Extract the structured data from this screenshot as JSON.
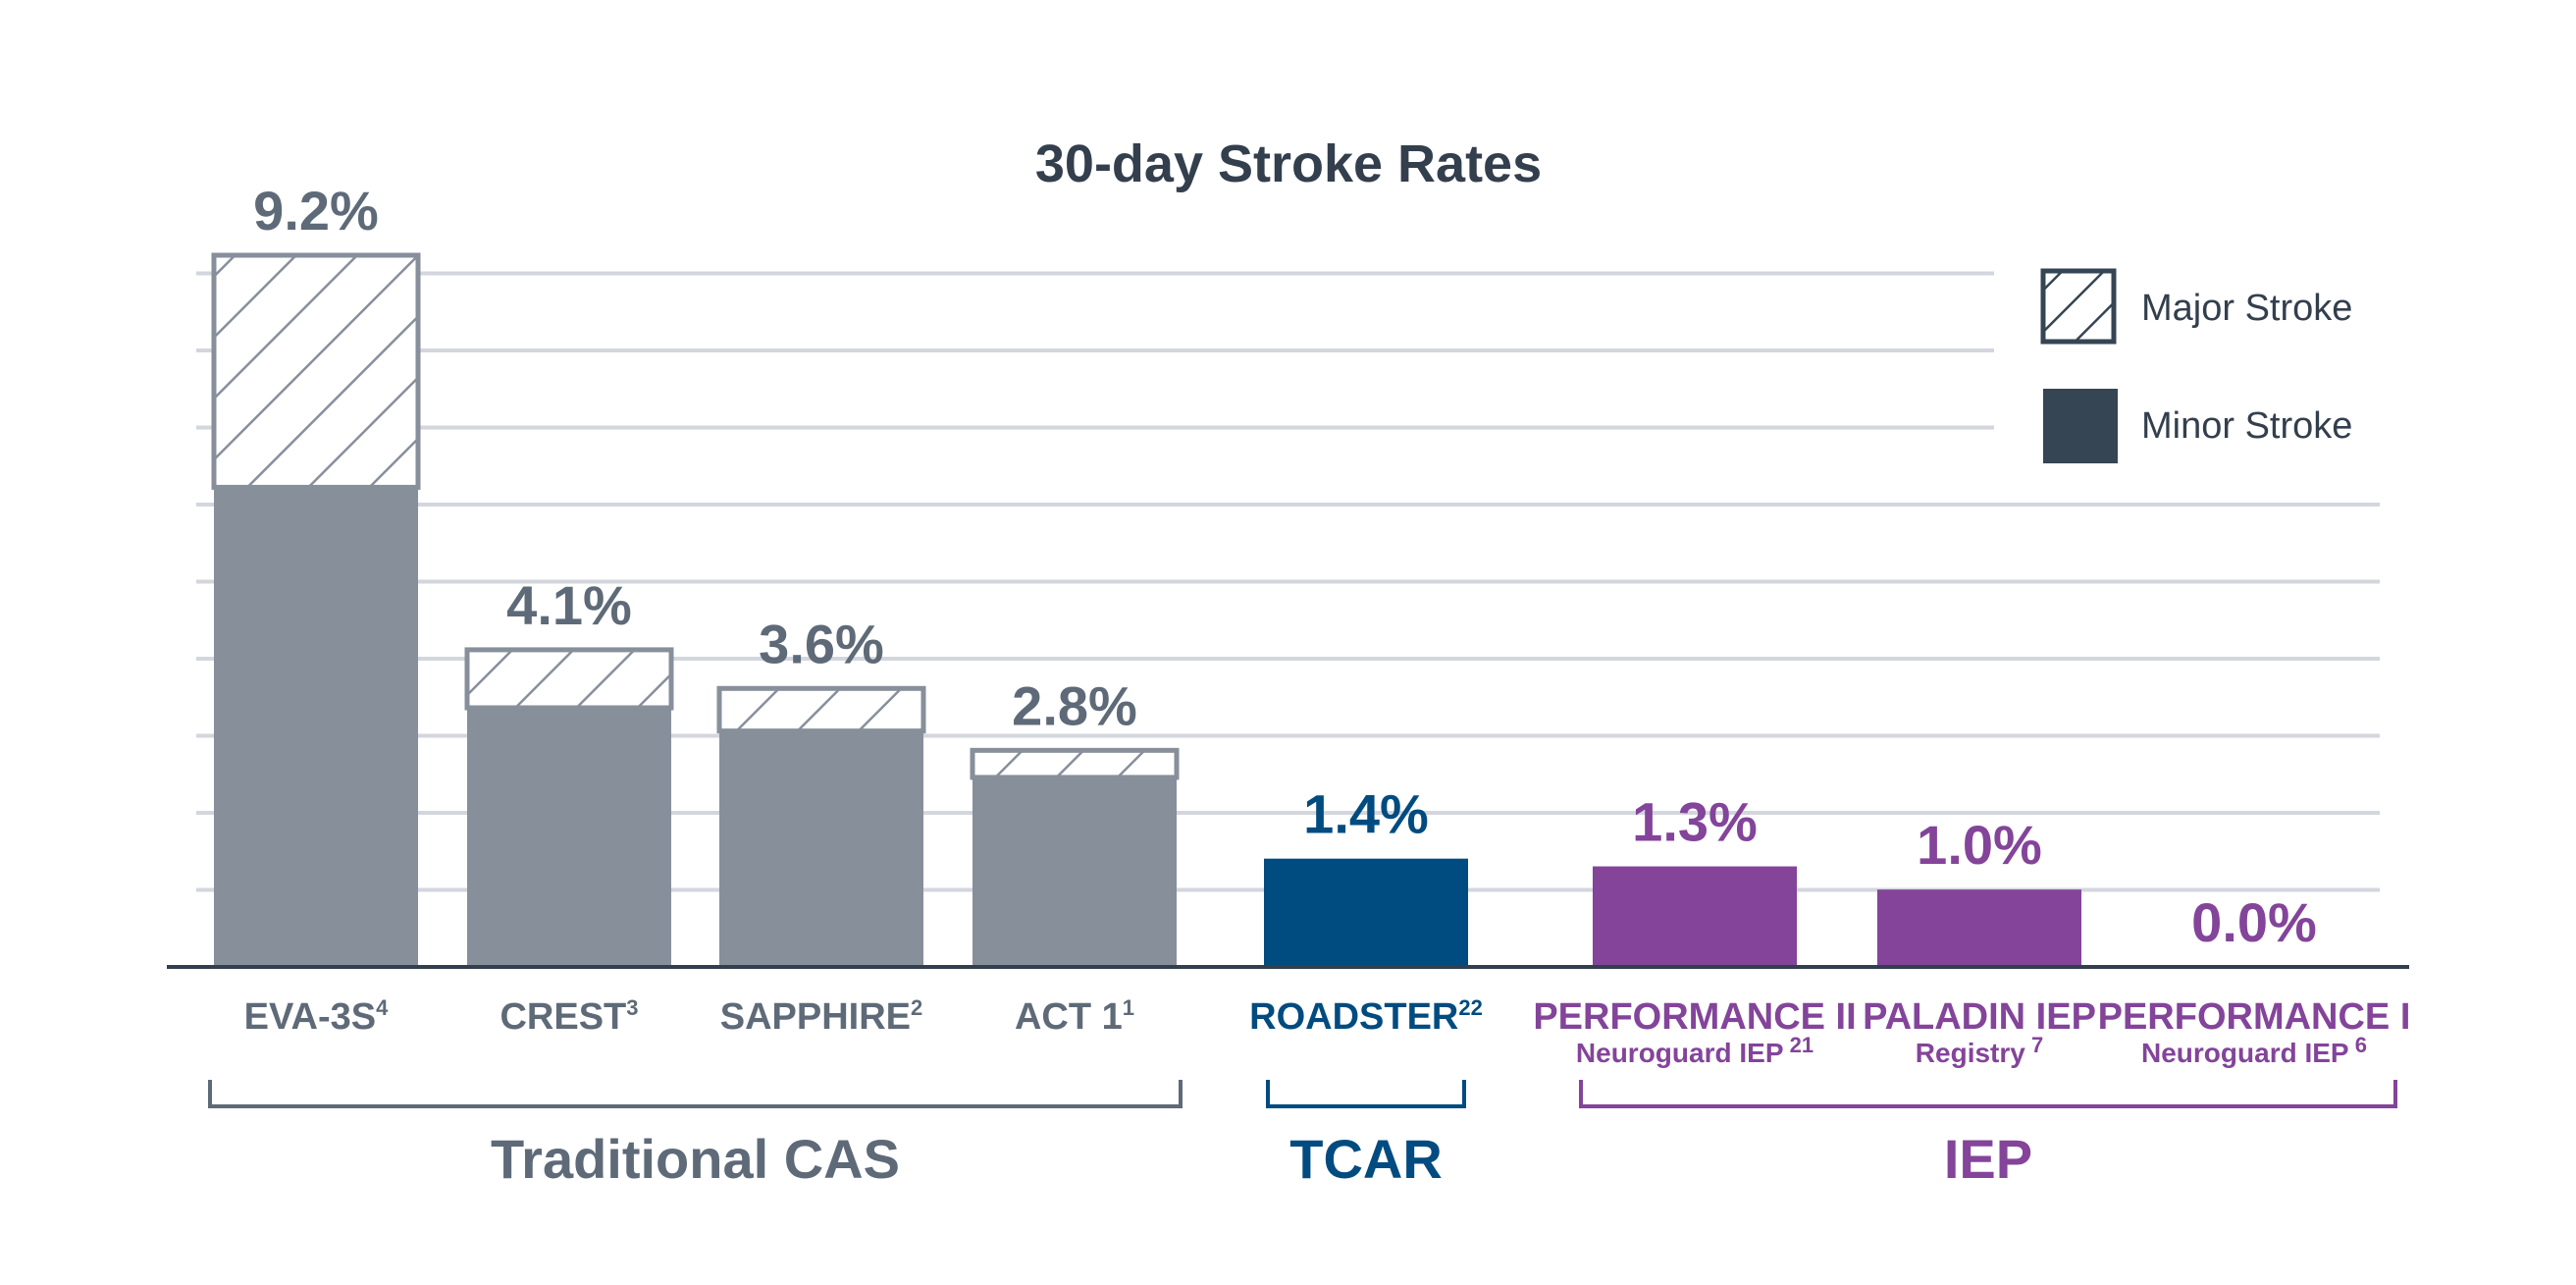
{
  "chart_data": {
    "type": "bar",
    "title": "30-day Stroke Rates",
    "ylim": [
      0,
      9.2
    ],
    "grid": true,
    "legend": {
      "placement": "top-right",
      "entries": [
        {
          "name": "Major Stroke",
          "style": "hatched"
        },
        {
          "name": "Minor Stroke",
          "style": "solid",
          "color": "#354554"
        }
      ]
    },
    "categories": [
      {
        "label": "EVA-3S",
        "sup": "4",
        "sub": "",
        "sub_sup": "",
        "group": "Traditional CAS",
        "total": 9.2,
        "total_label": "9.2%",
        "major": 3.0
      },
      {
        "label": "CREST",
        "sup": "3",
        "sub": "",
        "sub_sup": "",
        "group": "Traditional CAS",
        "total": 4.1,
        "total_label": "4.1%",
        "major": 0.75
      },
      {
        "label": "SAPPHIRE",
        "sup": "2",
        "sub": "",
        "sub_sup": "",
        "group": "Traditional CAS",
        "total": 3.6,
        "total_label": "3.6%",
        "major": 0.55
      },
      {
        "label": "ACT 1",
        "sup": "1",
        "sub": "",
        "sub_sup": "",
        "group": "Traditional CAS",
        "total": 2.8,
        "total_label": "2.8%",
        "major": 0.35
      },
      {
        "label": "ROADSTER",
        "sup": "22",
        "sub": "",
        "sub_sup": "",
        "group": "TCAR",
        "total": 1.4,
        "total_label": "1.4%",
        "major": 0
      },
      {
        "label": "PERFORMANCE II",
        "sup": "",
        "sub": "Neuroguard IEP",
        "sub_sup": "21",
        "group": "IEP",
        "total": 1.3,
        "total_label": "1.3%",
        "major": 0
      },
      {
        "label": "PALADIN IEP",
        "sup": "",
        "sub": "Registry",
        "sub_sup": "7",
        "group": "IEP",
        "total": 1.0,
        "total_label": "1.0%",
        "major": 0
      },
      {
        "label": "PERFORMANCE I",
        "sup": "",
        "sub": "Neuroguard IEP",
        "sub_sup": "6",
        "group": "IEP",
        "total": 0.0,
        "total_label": "0.0%",
        "major": 0
      }
    ],
    "groups": [
      {
        "name": "Traditional CAS",
        "color": "#5e6a78",
        "bar_color": "#878f9b"
      },
      {
        "name": "TCAR",
        "color": "#004b80",
        "bar_color": "#004b80"
      },
      {
        "name": "IEP",
        "color": "#83449a",
        "bar_color": "#83449a"
      }
    ]
  }
}
